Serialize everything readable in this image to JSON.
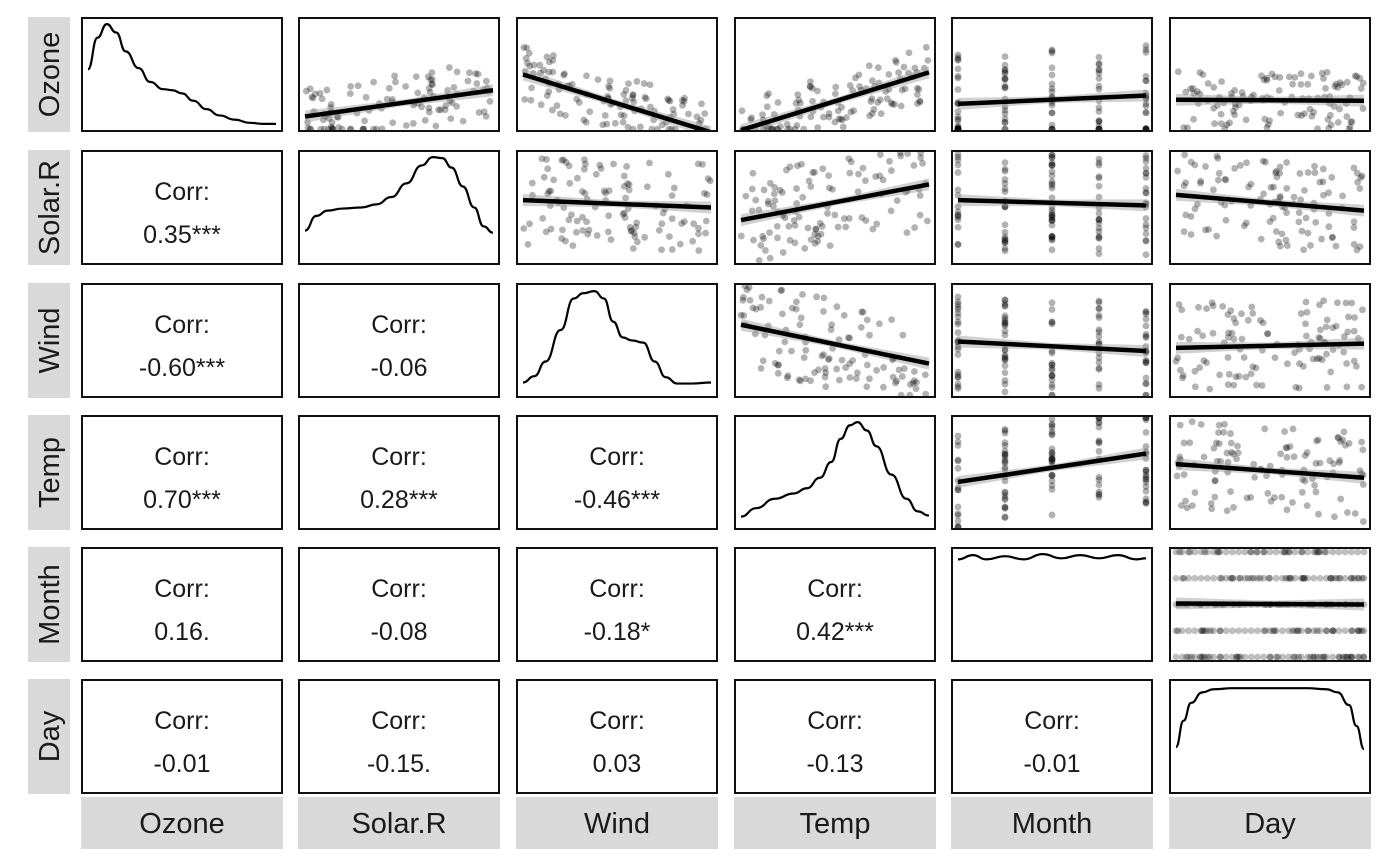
{
  "chart_data": {
    "type": "scatter-matrix",
    "variables": [
      "Ozone",
      "Solar.R",
      "Wind",
      "Temp",
      "Month",
      "Day"
    ],
    "corr_label": "Corr:",
    "correlations": [
      {
        "row": 1,
        "col": 0,
        "value": "0.35***"
      },
      {
        "row": 2,
        "col": 0,
        "value": "-0.60***"
      },
      {
        "row": 2,
        "col": 1,
        "value": "-0.06"
      },
      {
        "row": 3,
        "col": 0,
        "value": "0.70***"
      },
      {
        "row": 3,
        "col": 1,
        "value": "0.28***"
      },
      {
        "row": 3,
        "col": 2,
        "value": "-0.46***"
      },
      {
        "row": 4,
        "col": 0,
        "value": "0.16."
      },
      {
        "row": 4,
        "col": 1,
        "value": "-0.08"
      },
      {
        "row": 4,
        "col": 2,
        "value": "-0.18*"
      },
      {
        "row": 4,
        "col": 3,
        "value": "0.42***"
      },
      {
        "row": 5,
        "col": 0,
        "value": "-0.01"
      },
      {
        "row": 5,
        "col": 1,
        "value": "-0.15."
      },
      {
        "row": 5,
        "col": 2,
        "value": "0.03"
      },
      {
        "row": 5,
        "col": 3,
        "value": "-0.13"
      },
      {
        "row": 5,
        "col": 4,
        "value": "-0.01"
      }
    ],
    "density_curves": [
      [
        [
          0.0,
          0.55
        ],
        [
          0.05,
          0.85
        ],
        [
          0.1,
          0.98
        ],
        [
          0.15,
          0.9
        ],
        [
          0.2,
          0.72
        ],
        [
          0.27,
          0.56
        ],
        [
          0.33,
          0.43
        ],
        [
          0.4,
          0.36
        ],
        [
          0.45,
          0.35
        ],
        [
          0.5,
          0.32
        ],
        [
          0.56,
          0.25
        ],
        [
          0.63,
          0.17
        ],
        [
          0.7,
          0.11
        ],
        [
          0.78,
          0.07
        ],
        [
          0.86,
          0.04
        ],
        [
          0.93,
          0.03
        ],
        [
          1.0,
          0.03
        ]
      ],
      [
        [
          0.0,
          0.28
        ],
        [
          0.06,
          0.42
        ],
        [
          0.12,
          0.47
        ],
        [
          0.2,
          0.49
        ],
        [
          0.3,
          0.5
        ],
        [
          0.38,
          0.53
        ],
        [
          0.46,
          0.6
        ],
        [
          0.54,
          0.73
        ],
        [
          0.62,
          0.9
        ],
        [
          0.68,
          0.98
        ],
        [
          0.73,
          0.97
        ],
        [
          0.78,
          0.88
        ],
        [
          0.84,
          0.7
        ],
        [
          0.9,
          0.5
        ],
        [
          0.95,
          0.32
        ],
        [
          1.0,
          0.26
        ]
      ],
      [
        [
          0.0,
          0.1
        ],
        [
          0.06,
          0.16
        ],
        [
          0.12,
          0.3
        ],
        [
          0.2,
          0.6
        ],
        [
          0.27,
          0.9
        ],
        [
          0.32,
          0.95
        ],
        [
          0.38,
          0.97
        ],
        [
          0.43,
          0.9
        ],
        [
          0.48,
          0.68
        ],
        [
          0.53,
          0.53
        ],
        [
          0.58,
          0.5
        ],
        [
          0.64,
          0.48
        ],
        [
          0.7,
          0.3
        ],
        [
          0.76,
          0.15
        ],
        [
          0.82,
          0.09
        ],
        [
          0.9,
          0.09
        ],
        [
          1.0,
          0.1
        ]
      ],
      [
        [
          0.0,
          0.08
        ],
        [
          0.08,
          0.16
        ],
        [
          0.18,
          0.25
        ],
        [
          0.28,
          0.3
        ],
        [
          0.35,
          0.35
        ],
        [
          0.42,
          0.45
        ],
        [
          0.48,
          0.6
        ],
        [
          0.53,
          0.82
        ],
        [
          0.58,
          0.95
        ],
        [
          0.62,
          0.98
        ],
        [
          0.67,
          0.9
        ],
        [
          0.72,
          0.75
        ],
        [
          0.8,
          0.48
        ],
        [
          0.88,
          0.25
        ],
        [
          0.94,
          0.13
        ],
        [
          1.0,
          0.09
        ]
      ],
      [
        [
          0.0,
          0.93
        ],
        [
          0.08,
          0.97
        ],
        [
          0.15,
          0.93
        ],
        [
          0.25,
          0.96
        ],
        [
          0.35,
          0.93
        ],
        [
          0.45,
          0.98
        ],
        [
          0.55,
          0.94
        ],
        [
          0.65,
          0.97
        ],
        [
          0.75,
          0.94
        ],
        [
          0.85,
          0.97
        ],
        [
          0.95,
          0.93
        ],
        [
          1.0,
          0.94
        ]
      ],
      [
        [
          0.0,
          0.4
        ],
        [
          0.04,
          0.65
        ],
        [
          0.08,
          0.82
        ],
        [
          0.14,
          0.92
        ],
        [
          0.2,
          0.95
        ],
        [
          0.3,
          0.96
        ],
        [
          0.5,
          0.96
        ],
        [
          0.7,
          0.96
        ],
        [
          0.8,
          0.95
        ],
        [
          0.86,
          0.92
        ],
        [
          0.92,
          0.8
        ],
        [
          0.96,
          0.6
        ],
        [
          1.0,
          0.38
        ]
      ]
    ],
    "fit_lines": [
      {
        "row": 0,
        "col": 1,
        "y0": 0.1,
        "y1": 0.35
      },
      {
        "row": 0,
        "col": 2,
        "y0": 0.5,
        "y1": -0.05
      },
      {
        "row": 0,
        "col": 3,
        "y0": -0.03,
        "y1": 0.52
      },
      {
        "row": 0,
        "col": 4,
        "y0": 0.22,
        "y1": 0.3
      },
      {
        "row": 0,
        "col": 5,
        "y0": 0.26,
        "y1": 0.25
      },
      {
        "row": 1,
        "col": 2,
        "y0": 0.57,
        "y1": 0.5
      },
      {
        "row": 1,
        "col": 3,
        "y0": 0.38,
        "y1": 0.72
      },
      {
        "row": 1,
        "col": 4,
        "y0": 0.57,
        "y1": 0.52
      },
      {
        "row": 1,
        "col": 5,
        "y0": 0.62,
        "y1": 0.47
      },
      {
        "row": 2,
        "col": 3,
        "y0": 0.65,
        "y1": 0.28
      },
      {
        "row": 2,
        "col": 4,
        "y0": 0.49,
        "y1": 0.4
      },
      {
        "row": 2,
        "col": 5,
        "y0": 0.43,
        "y1": 0.47
      },
      {
        "row": 3,
        "col": 4,
        "y0": 0.41,
        "y1": 0.68
      },
      {
        "row": 3,
        "col": 5,
        "y0": 0.58,
        "y1": 0.45
      },
      {
        "row": 4,
        "col": 5,
        "y0": 0.51,
        "y1": 0.5
      }
    ],
    "month_values": [
      5,
      6,
      7,
      8,
      9
    ],
    "grid": false
  }
}
